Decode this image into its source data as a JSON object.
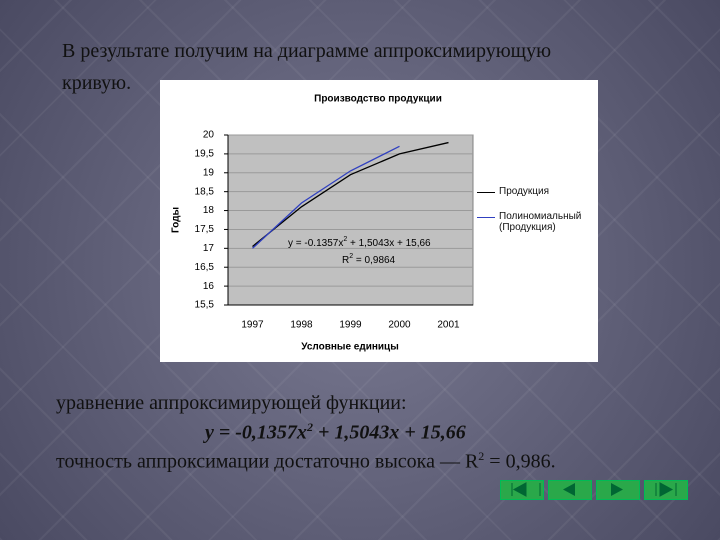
{
  "slide": {
    "intro": [
      "В результате получим на диаграмме аппроксимирующую",
      "кривую."
    ],
    "equation_label": "уравнение аппроксимирующей функции:",
    "equation": [
      "y = -0,1357x",
      "2",
      " + 1,5043x + 15,66"
    ],
    "accuracy": [
      "точность аппроксимации достаточно высока — R",
      "2",
      " = 0,986."
    ]
  },
  "chart_data": {
    "type": "line",
    "title": "Производство продукции",
    "x_label": "Условные единицы",
    "y_label": "Годы",
    "categories": [
      "1997",
      "1998",
      "1999",
      "2000",
      "2001"
    ],
    "series": [
      {
        "name": "Продукция",
        "color": "#000000",
        "values": [
          17.05,
          18.1,
          18.95,
          19.5,
          19.8
        ]
      },
      {
        "name": "Полиномиальный (Продукция)",
        "color": "#3040c0",
        "values": [
          17.0,
          18.2,
          19.05,
          19.7,
          null
        ]
      }
    ],
    "annotations": [
      [
        "y = -0.1357x",
        "2",
        " + 1,5043x + 15,66"
      ],
      [
        "R",
        "2",
        " = 0,9864"
      ]
    ],
    "ylim": [
      15.5,
      20
    ],
    "yticks": [
      {
        "value": 15.5,
        "label": "15,5"
      },
      16,
      {
        "value": 16.5,
        "label": "16,5"
      },
      17,
      {
        "value": 17.5,
        "label": "17,5"
      },
      18,
      {
        "value": 18.5,
        "label": "18,5"
      },
      19,
      {
        "value": 19.5,
        "label": "19,5"
      },
      20
    ],
    "grid": true
  }
}
